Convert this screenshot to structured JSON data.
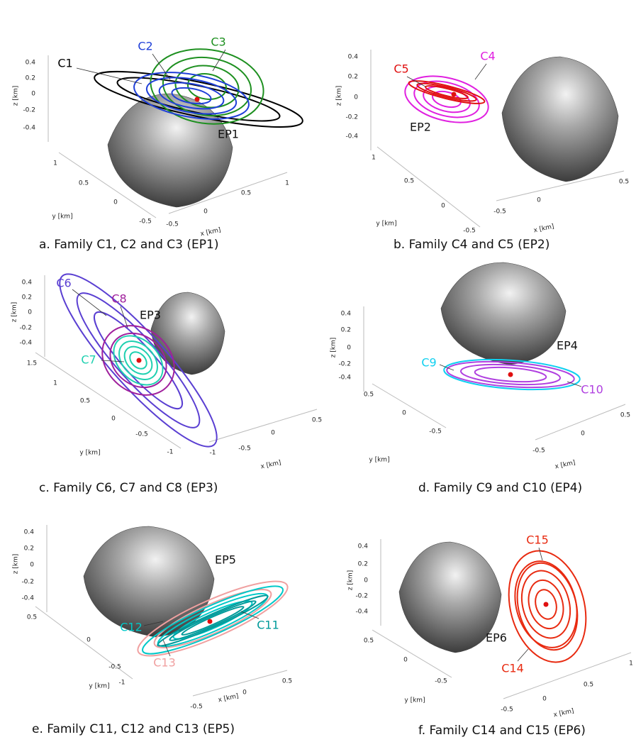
{
  "panels": [
    {
      "caption": "a. Family C1, C2 and C3 (EP1)",
      "z_axis_label": "z [km]",
      "y_axis_label": "y [km]",
      "x_axis_label": "x [km]",
      "z_ticks": [
        "0.4",
        "0.2",
        "0",
        "-0.2",
        "-0.4"
      ],
      "y_ticks": [
        "1",
        "0.5",
        "0",
        "-0.5"
      ],
      "x_ticks": [
        "-0.5",
        "0",
        "0.5",
        "1"
      ],
      "labels": [
        {
          "text": "C1",
          "color": "#000000"
        },
        {
          "text": "C2",
          "color": "#1f3fd8"
        },
        {
          "text": "C3",
          "color": "#1e9020"
        },
        {
          "text": "EP1",
          "color": "#111111"
        }
      ]
    },
    {
      "caption": "b. Family C4 and C5 (EP2)",
      "z_axis_label": "z [km]",
      "y_axis_label": "y [km]",
      "x_axis_label": "x [km]",
      "z_ticks": [
        "0.4",
        "0.2",
        "0",
        "-0.2",
        "-0.4"
      ],
      "y_ticks": [
        "1",
        "0.5",
        "0",
        "-0.5"
      ],
      "x_ticks": [
        "-0.5",
        "0",
        "0.5"
      ],
      "labels": [
        {
          "text": "C5",
          "color": "#e01010"
        },
        {
          "text": "C4",
          "color": "#e020e0"
        },
        {
          "text": "EP2",
          "color": "#111111"
        }
      ]
    },
    {
      "caption": "c. Family C6, C7 and C8 (EP3)",
      "z_axis_label": "z [km]",
      "y_axis_label": "y [km]",
      "x_axis_label": "x [km]",
      "z_ticks": [
        "0.4",
        "0.2",
        "0",
        "-0.2",
        "-0.4"
      ],
      "y_ticks": [
        "1.5",
        "1",
        "0.5",
        "0",
        "-0.5",
        "-1"
      ],
      "x_ticks": [
        "-1",
        "-0.5",
        "0",
        "0.5"
      ],
      "labels": [
        {
          "text": "C6",
          "color": "#5a3fd2"
        },
        {
          "text": "C8",
          "color": "#a0209c"
        },
        {
          "text": "EP3",
          "color": "#111111"
        },
        {
          "text": "C7",
          "color": "#1ed0b0"
        }
      ]
    },
    {
      "caption": "d. Family C9 and C10 (EP4)",
      "z_axis_label": "z [km]",
      "y_axis_label": "y [km]",
      "x_axis_label": "x [km]",
      "z_ticks": [
        "0.4",
        "0.2",
        "0",
        "-0.2",
        "-0.4"
      ],
      "y_ticks": [
        "0.5",
        "0",
        "-0.5"
      ],
      "x_ticks": [
        "-0.5",
        "0",
        "0.5"
      ],
      "labels": [
        {
          "text": "EP4",
          "color": "#111111"
        },
        {
          "text": "C9",
          "color": "#10d0f0"
        },
        {
          "text": "C10",
          "color": "#b040e0"
        }
      ]
    },
    {
      "caption": "e. Family C11, C12 and C13 (EP5)",
      "z_axis_label": "z [km]",
      "y_axis_label": "y [km]",
      "x_axis_label": "x [km]",
      "z_ticks": [
        "0.4",
        "0.2",
        "0",
        "-0.2",
        "-0.4"
      ],
      "y_ticks": [
        "0.5",
        "0",
        "-0.5",
        "-1"
      ],
      "x_ticks": [
        "-0.5",
        "0",
        "0.5"
      ],
      "labels": [
        {
          "text": "EP5",
          "color": "#111111"
        },
        {
          "text": "C12",
          "color": "#00c8c8"
        },
        {
          "text": "C11",
          "color": "#009a9a"
        },
        {
          "text": "C13",
          "color": "#f0a0a0"
        }
      ]
    },
    {
      "caption": "f. Family C14 and C15 (EP6)",
      "z_axis_label": "z [km]",
      "y_axis_label": "y [km]",
      "x_axis_label": "x [km]",
      "z_ticks": [
        "0.4",
        "0.2",
        "0",
        "-0.2",
        "-0.4"
      ],
      "y_ticks": [
        "0.5",
        "0",
        "-0.5"
      ],
      "x_ticks": [
        "-0.5",
        "0",
        "0.5",
        "1"
      ],
      "labels": [
        {
          "text": "C15",
          "color": "#e82a10"
        },
        {
          "text": "EP6",
          "color": "#111111"
        },
        {
          "text": "C14",
          "color": "#e82a10"
        }
      ]
    }
  ]
}
